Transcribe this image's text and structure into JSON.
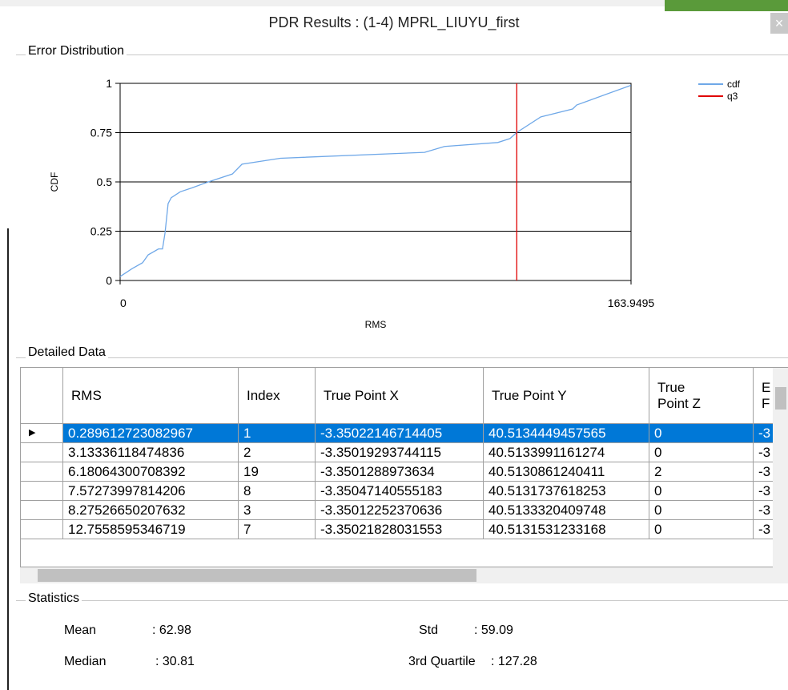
{
  "window": {
    "title": "PDR Results : (1-4) MPRL_LIUYU_first",
    "close": "×"
  },
  "error_distribution": {
    "label": "Error Distribution"
  },
  "chart_data": {
    "type": "line",
    "xlabel": "RMS",
    "ylabel": "CDF",
    "xlim": [
      0,
      163.9495
    ],
    "xticks": [
      0,
      163.9495
    ],
    "ylim": [
      0,
      1
    ],
    "yticks": [
      0,
      0.25,
      0.5,
      0.75,
      1
    ],
    "grid": true,
    "series": [
      {
        "name": "cdf",
        "color": "#6fa8e8",
        "x": [
          0,
          3.85,
          7.2,
          9.0,
          12.3,
          13.6,
          14.4,
          15.4,
          16.4,
          19.3,
          23.1,
          28.3,
          36.0,
          39.1,
          51.4,
          97.7,
          104.1,
          121.2,
          125.1,
          127.2,
          135.0,
          137.6,
          145.2,
          146.5,
          163.9
        ],
        "values": [
          0.02,
          0.06,
          0.09,
          0.13,
          0.16,
          0.16,
          0.24,
          0.39,
          0.42,
          0.45,
          0.47,
          0.5,
          0.54,
          0.59,
          0.62,
          0.65,
          0.68,
          0.7,
          0.72,
          0.75,
          0.83,
          0.84,
          0.87,
          0.89,
          0.99
        ]
      },
      {
        "name": "q3",
        "color": "#e00000",
        "x": [
          127.28,
          127.28
        ],
        "values": [
          0,
          1
        ]
      }
    ]
  },
  "detailed_data": {
    "label": "Detailed Data",
    "headers": [
      "RMS",
      "Index",
      "True Point X",
      "True Point Y",
      "True Point Z",
      "E F"
    ],
    "rows": [
      [
        "0.289612723082967",
        "1",
        "-3.35022146714405",
        "40.5134449457565",
        "0",
        "-3"
      ],
      [
        "3.13336118474836",
        "2",
        "-3.35019293744115",
        "40.5133991161274",
        "0",
        "-3"
      ],
      [
        "6.18064300708392",
        "19",
        "-3.3501288973634",
        "40.5130861240411",
        "2",
        "-3"
      ],
      [
        "7.57273997814206",
        "8",
        "-3.35047140555183",
        "40.5131737618253",
        "0",
        "-3"
      ],
      [
        "8.27526650207632",
        "3",
        "-3.35012252370636",
        "40.5133320409748",
        "0",
        "-3"
      ],
      [
        "12.7558595346719",
        "7",
        "-3.35021828031553",
        "40.5131531233168",
        "0",
        "-3"
      ]
    ]
  },
  "statistics": {
    "label": "Statistics",
    "items": [
      {
        "name": "Mean",
        "value": ": 62.98"
      },
      {
        "name": "Std",
        "value": ": 59.09"
      },
      {
        "name": "Median",
        "value": ": 30.81"
      },
      {
        "name": "3rd Quartile",
        "value": ": 127.28"
      }
    ]
  }
}
